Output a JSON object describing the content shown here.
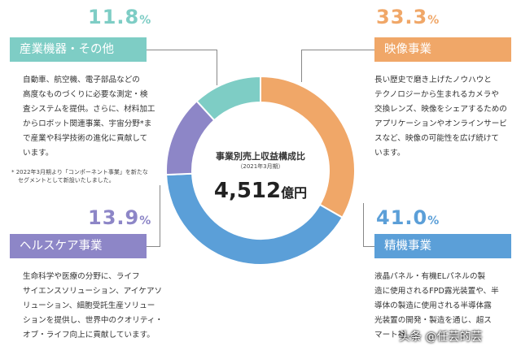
{
  "chart_data": {
    "type": "pie",
    "title": "事業別売上収益構成比",
    "subtitle": "（2021年3月期）",
    "total_value": "4,512",
    "total_unit": "億円",
    "slices": [
      {
        "name": "映像事業",
        "value": 33.3,
        "color": "#f0a768"
      },
      {
        "name": "精機事業",
        "value": 41.0,
        "color": "#5b9fd8"
      },
      {
        "name": "ヘルスケア事業",
        "value": 13.9,
        "color": "#8d86c7"
      },
      {
        "name": "産業機器・その他",
        "value": 11.8,
        "color": "#7ecdc5"
      }
    ]
  },
  "segments": {
    "industrial": {
      "pct": "11.8",
      "unit": "%",
      "title": "産業機器・その他",
      "desc": [
        "自動車、航空機、電子部品などの",
        "高度なものづくりに必要な測定・検",
        "査システムを提供。さらに、材料加工",
        "からロボット関連事業、宇宙分野*ま",
        "で産業や科学技術の進化に貢献して",
        "います。"
      ],
      "note": [
        "* 2022年3月期より「コンポーネント事業」を新たな",
        "セグメントとして新設いたしました。"
      ]
    },
    "imaging": {
      "pct": "33.3",
      "unit": "%",
      "title": "映像事業",
      "desc": [
        "長い歴史で磨き上げたノウハウと",
        "テクノロジーから生まれるカメラや",
        "交換レンズ、映像をシェアするための",
        "アプリケーションやオンラインサービ",
        "スなど、映像の可能性を広げ続けて",
        "います。"
      ]
    },
    "healthcare": {
      "pct": "13.9",
      "unit": "%",
      "title": "ヘルスケア事業",
      "desc": [
        "生命科学や医療の分野に、ライフ",
        "サイエンスソリューション、アイケアソ",
        "リューション、細胞受託生産ソリュー",
        "ションを提供し、世界中のクオリティ・",
        "オブ・ライフ向上に貢献しています。"
      ]
    },
    "precision": {
      "pct": "41.0",
      "unit": "%",
      "title": "精機事業",
      "desc": [
        "液晶パネル・有機ELパネルの製",
        "造に使用されるFPD露光装置や、半",
        "導体の製造に使用される半導体露",
        "光装置の開発・製造を通じ、超ス",
        "マート社…"
      ]
    }
  },
  "watermark": "头条 @任芸的芸"
}
